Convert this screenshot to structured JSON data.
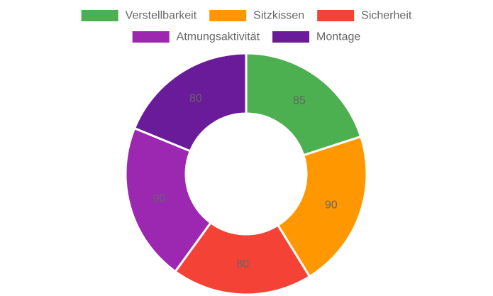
{
  "chart_data": {
    "type": "pie",
    "variant": "doughnut",
    "legend_position": "top",
    "categories": [
      "Verstellbarkeit",
      "Sitzkissen",
      "Sicherheit",
      "Atmungsaktivität",
      "Montage"
    ],
    "values": [
      85,
      90,
      80,
      90,
      80
    ],
    "colors": [
      "#4caf50",
      "#ff9800",
      "#f44336",
      "#9c27b0",
      "#6a1b9a"
    ],
    "show_data_labels": true
  }
}
